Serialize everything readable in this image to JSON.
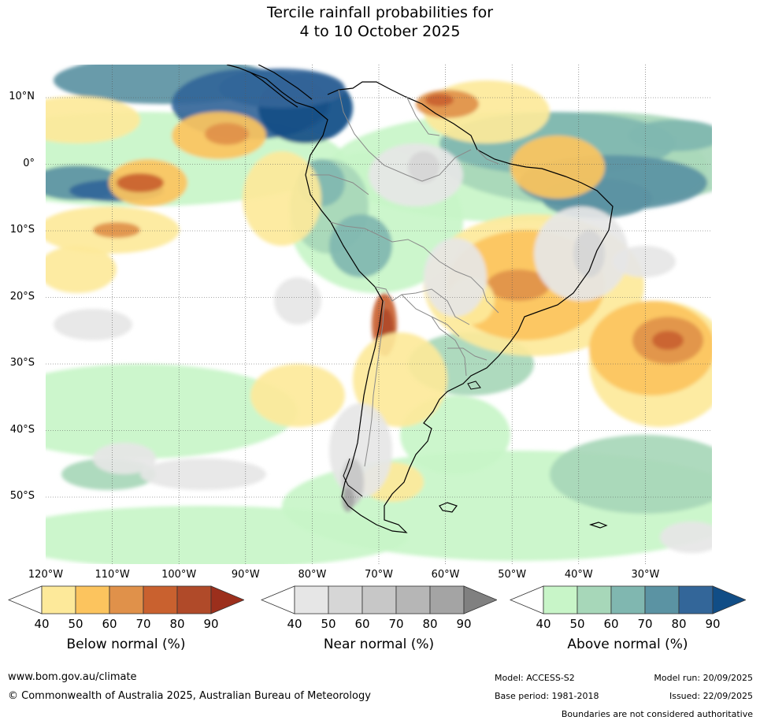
{
  "title": {
    "line1": "Tercile rainfall probabilities for",
    "line2": "4 to 10 October 2025"
  },
  "map": {
    "lat_labels": [
      "10°N",
      "0°",
      "10°S",
      "20°S",
      "30°S",
      "40°S",
      "50°S"
    ],
    "lon_labels": [
      "120°W",
      "110°W",
      "100°W",
      "90°W",
      "80°W",
      "70°W",
      "60°W",
      "50°W",
      "40°W",
      "30°W"
    ],
    "colors": {
      "below": [
        "#fde99a",
        "#fcc45e",
        "#e0914a",
        "#c9612f",
        "#b04a29",
        "#9c2f1c"
      ],
      "near": [
        "#e6e6e6",
        "#d6d6d6",
        "#c7c7c7",
        "#b6b6b6",
        "#a4a4a4",
        "#808080"
      ],
      "above": [
        "#c8f5c8",
        "#a7d7b9",
        "#80b7b0",
        "#5b93a3",
        "#336699",
        "#114d86"
      ]
    }
  },
  "colorbars": [
    {
      "title": "Below normal (%)",
      "ticks": [
        "40",
        "50",
        "60",
        "70",
        "80",
        "90"
      ]
    },
    {
      "title": "Near normal (%)",
      "ticks": [
        "40",
        "50",
        "60",
        "70",
        "80",
        "90"
      ]
    },
    {
      "title": "Above normal (%)",
      "ticks": [
        "40",
        "50",
        "60",
        "70",
        "80",
        "90"
      ]
    }
  ],
  "footer": {
    "url": "www.bom.gov.au/climate",
    "copyright": "© Commonwealth of Australia 2025, Australian Bureau of Meteorology",
    "model": "Model: ACCESS-S2",
    "base_period": "Base period: 1981-2018",
    "model_run": "Model run: 20/09/2025",
    "issued": "Issued: 22/09/2025",
    "disclaimer": "Boundaries are not considered authoritative"
  }
}
